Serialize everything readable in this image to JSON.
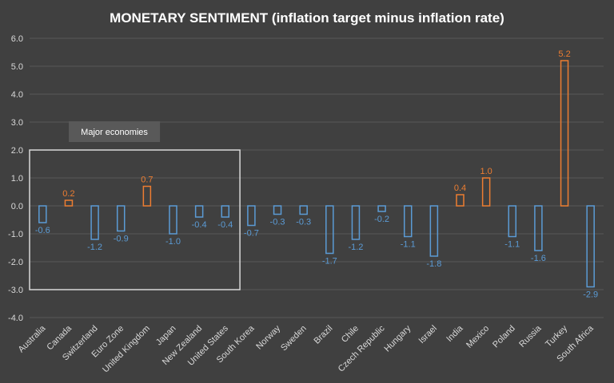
{
  "chart_data": {
    "type": "bar",
    "title": "MONETARY SENTIMENT (inflation target minus inflation rate)",
    "xlabel": "",
    "ylabel": "",
    "ylim": [
      -4.0,
      6.0
    ],
    "yticks": [
      "6.0",
      "5.0",
      "4.0",
      "3.0",
      "2.0",
      "1.0",
      "0.0",
      "-1.0",
      "-2.0",
      "-3.0",
      "-4.0"
    ],
    "ytick_values": [
      6,
      5,
      4,
      3,
      2,
      1,
      0,
      -1,
      -2,
      -3,
      -4
    ],
    "grid": true,
    "legend": "none",
    "categories": [
      "Australia",
      "Canada",
      "Switzerland",
      "Euro Zone",
      "United Kingdom",
      "Japan",
      "New Zealand",
      "United States",
      "South Korea",
      "Norway",
      "Sweden",
      "Brazil",
      "Chile",
      "Czech Republic",
      "Hungary",
      "Israel",
      "India",
      "Mexico",
      "Poland",
      "Russia",
      "Turkey",
      "South Africa"
    ],
    "values": [
      -0.6,
      0.2,
      -1.2,
      -0.9,
      0.7,
      -1.0,
      -0.4,
      -0.4,
      -0.7,
      -0.3,
      -0.3,
      -1.7,
      -1.2,
      -0.2,
      -1.1,
      -1.8,
      0.4,
      1.0,
      -1.1,
      -1.6,
      5.2,
      -2.9
    ],
    "data_labels": [
      "-0.6",
      "0.2",
      "-1.2",
      "-0.9",
      "0.7",
      "-1.0",
      "-0.4",
      "-0.4",
      "-0.7",
      "-0.3",
      "-0.3",
      "-1.7",
      "-1.2",
      "-0.2",
      "-1.1",
      "-1.8",
      "0.4",
      "1.0",
      "-1.1",
      "-1.6",
      "5.2",
      "-2.9"
    ],
    "colors": {
      "positive": "#ed7d31",
      "negative": "#5b9bd5",
      "background": "#404040",
      "grid": "#595959",
      "text": "#d9d9d9"
    },
    "annotation": {
      "label": "Major economies",
      "first_category": 0,
      "last_category": 7,
      "y_range": [
        -3.0,
        2.0
      ]
    }
  }
}
